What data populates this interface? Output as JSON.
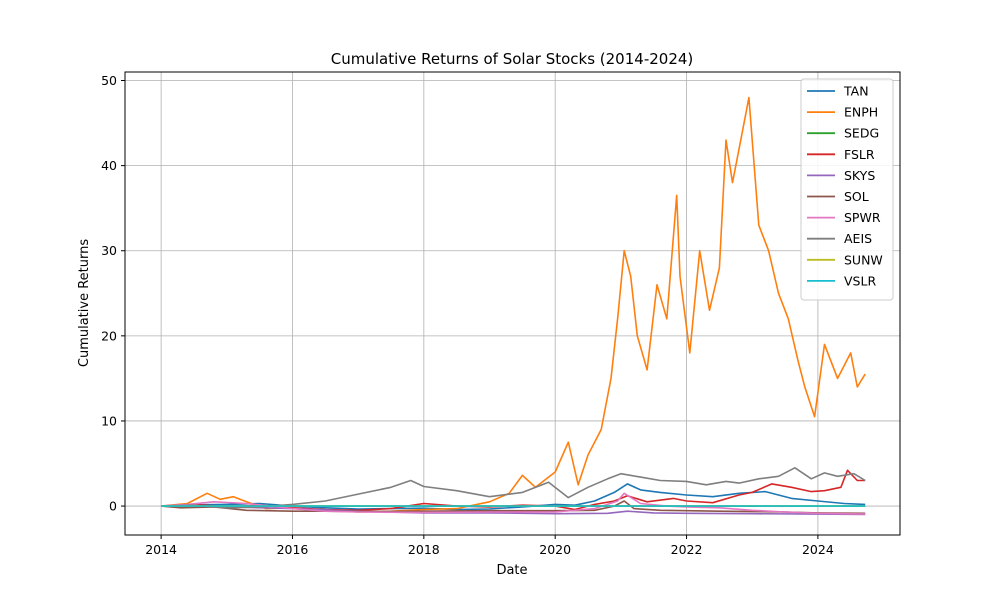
{
  "chart_data": {
    "type": "line",
    "title": "Cumulative Returns of Solar Stocks (2014-2024)",
    "xlabel": "Date",
    "ylabel": "Cumulative Returns",
    "xlim": [
      2013.45,
      2025.25
    ],
    "ylim": [
      -3.4,
      51.0
    ],
    "x_ticks": [
      2014,
      2016,
      2018,
      2020,
      2022,
      2024
    ],
    "x_tick_labels": [
      "2014",
      "2016",
      "2018",
      "2020",
      "2022",
      "2024"
    ],
    "y_ticks": [
      0,
      10,
      20,
      30,
      40,
      50
    ],
    "y_tick_labels": [
      "0",
      "10",
      "20",
      "30",
      "40",
      "50"
    ],
    "grid": true,
    "legend_position": "upper right",
    "series": [
      {
        "name": "TAN",
        "color": "#1f77b4",
        "x": [
          2014.0,
          2014.5,
          2015.0,
          2015.5,
          2016.0,
          2016.5,
          2017.0,
          2017.5,
          2018.0,
          2018.5,
          2019.0,
          2019.5,
          2020.0,
          2020.3,
          2020.6,
          2020.9,
          2021.1,
          2021.3,
          2021.6,
          2022.0,
          2022.4,
          2022.8,
          2023.2,
          2023.6,
          2024.0,
          2024.4,
          2024.72
        ],
        "y": [
          0.0,
          0.15,
          0.2,
          0.3,
          0.0,
          -0.2,
          -0.35,
          -0.3,
          -0.25,
          -0.4,
          -0.35,
          -0.1,
          0.2,
          0.1,
          0.6,
          1.6,
          2.6,
          1.9,
          1.6,
          1.3,
          1.1,
          1.5,
          1.7,
          0.9,
          0.6,
          0.3,
          0.2
        ]
      },
      {
        "name": "ENPH",
        "color": "#ff7f0e",
        "x": [
          2014.0,
          2014.4,
          2014.7,
          2014.9,
          2015.1,
          2015.3,
          2015.6,
          2016.0,
          2016.5,
          2017.0,
          2017.5,
          2018.0,
          2018.5,
          2019.0,
          2019.3,
          2019.5,
          2019.7,
          2020.0,
          2020.2,
          2020.35,
          2020.5,
          2020.7,
          2020.85,
          2020.95,
          2021.05,
          2021.15,
          2021.25,
          2021.4,
          2021.55,
          2021.7,
          2021.85,
          2021.9,
          2022.05,
          2022.2,
          2022.35,
          2022.5,
          2022.6,
          2022.7,
          2022.85,
          2022.95,
          2023.1,
          2023.25,
          2023.4,
          2023.55,
          2023.7,
          2023.8,
          2023.95,
          2024.1,
          2024.3,
          2024.5,
          2024.6,
          2024.72
        ],
        "y": [
          0.0,
          0.3,
          1.5,
          0.8,
          1.1,
          0.5,
          -0.3,
          -0.2,
          -0.5,
          -0.7,
          -0.6,
          -0.4,
          -0.3,
          0.5,
          1.5,
          3.6,
          2.2,
          4.0,
          7.5,
          2.5,
          6.0,
          9.0,
          15.0,
          22.0,
          30.0,
          27.0,
          20.0,
          16.0,
          26.0,
          22.0,
          36.5,
          27.0,
          18.0,
          30.0,
          23.0,
          28.0,
          43.0,
          38.0,
          44.0,
          48.0,
          33.0,
          30.0,
          25.0,
          22.0,
          17.0,
          14.0,
          10.5,
          19.0,
          15.0,
          18.0,
          14.0,
          15.5
        ]
      },
      {
        "name": "SEDG",
        "color": "#2ca02c",
        "x": [
          2014.0,
          2024.72
        ],
        "y": [
          0.0,
          0.0
        ]
      },
      {
        "name": "FSLR",
        "color": "#d62728",
        "x": [
          2014.0,
          2014.5,
          2015.0,
          2015.5,
          2016.0,
          2016.5,
          2017.0,
          2017.5,
          2018.0,
          2018.5,
          2019.0,
          2019.5,
          2020.0,
          2020.3,
          2020.6,
          2020.9,
          2021.1,
          2021.4,
          2021.8,
          2022.0,
          2022.4,
          2022.8,
          2023.0,
          2023.3,
          2023.6,
          2023.9,
          2024.1,
          2024.35,
          2024.45,
          2024.6,
          2024.72
        ],
        "y": [
          0.0,
          0.2,
          -0.1,
          0.1,
          -0.2,
          -0.4,
          -0.5,
          -0.3,
          0.3,
          0.0,
          -0.1,
          0.1,
          0.0,
          -0.4,
          0.2,
          0.6,
          1.2,
          0.5,
          0.9,
          0.6,
          0.4,
          1.3,
          1.6,
          2.6,
          2.2,
          1.7,
          1.8,
          2.2,
          4.2,
          3.0,
          3.0
        ]
      },
      {
        "name": "SKYS",
        "color": "#9467bd",
        "x": [
          2014.0,
          2015.0,
          2016.0,
          2017.0,
          2018.0,
          2019.0,
          2020.0,
          2020.8,
          2021.1,
          2021.5,
          2022.0,
          2023.0,
          2024.0,
          2024.72
        ],
        "y": [
          0.0,
          -0.1,
          -0.3,
          -0.6,
          -0.8,
          -0.8,
          -0.9,
          -0.85,
          -0.6,
          -0.8,
          -0.85,
          -0.9,
          -0.95,
          -0.98
        ]
      },
      {
        "name": "SOL",
        "color": "#8c564b",
        "x": [
          2014.0,
          2014.3,
          2014.8,
          2015.3,
          2016.0,
          2016.5,
          2017.0,
          2018.0,
          2019.0,
          2020.0,
          2020.6,
          2020.9,
          2021.05,
          2021.2,
          2021.6,
          2022.0,
          2022.5,
          2023.0,
          2023.5,
          2024.0,
          2024.72
        ],
        "y": [
          0.0,
          -0.2,
          -0.1,
          -0.5,
          -0.6,
          -0.6,
          -0.65,
          -0.6,
          -0.55,
          -0.55,
          -0.5,
          0.0,
          0.6,
          -0.3,
          -0.5,
          -0.55,
          -0.6,
          -0.65,
          -0.7,
          -0.8,
          -0.85
        ]
      },
      {
        "name": "SPWR",
        "color": "#e377c2",
        "x": [
          2014.0,
          2014.4,
          2014.8,
          2015.3,
          2016.0,
          2016.5,
          2017.0,
          2018.0,
          2019.0,
          2020.0,
          2020.6,
          2020.95,
          2021.05,
          2021.3,
          2021.7,
          2022.0,
          2022.5,
          2023.0,
          2023.5,
          2024.0,
          2024.72
        ],
        "y": [
          0.0,
          0.2,
          0.5,
          0.3,
          -0.3,
          -0.6,
          -0.7,
          -0.75,
          -0.7,
          -0.7,
          -0.3,
          0.6,
          1.5,
          0.3,
          0.0,
          -0.1,
          -0.2,
          -0.5,
          -0.7,
          -0.85,
          -0.95
        ]
      },
      {
        "name": "AEIS",
        "color": "#7f7f7f",
        "x": [
          2014.0,
          2014.5,
          2015.0,
          2015.5,
          2016.0,
          2016.5,
          2017.0,
          2017.5,
          2017.8,
          2018.0,
          2018.5,
          2019.0,
          2019.5,
          2019.9,
          2020.2,
          2020.5,
          2020.8,
          2021.0,
          2021.3,
          2021.6,
          2022.0,
          2022.3,
          2022.6,
          2022.8,
          2023.1,
          2023.4,
          2023.65,
          2023.9,
          2024.1,
          2024.3,
          2024.55,
          2024.72
        ],
        "y": [
          0.0,
          0.1,
          -0.2,
          -0.1,
          0.2,
          0.6,
          1.4,
          2.2,
          3.0,
          2.3,
          1.8,
          1.1,
          1.6,
          2.8,
          1.0,
          2.2,
          3.2,
          3.8,
          3.4,
          3.0,
          2.9,
          2.5,
          2.9,
          2.7,
          3.2,
          3.5,
          4.5,
          3.2,
          3.9,
          3.5,
          3.8,
          3.0
        ]
      },
      {
        "name": "SUNW",
        "color": "#bcbd22",
        "x": [
          2014.0,
          2024.72
        ],
        "y": [
          0.0,
          0.0
        ]
      },
      {
        "name": "VSLR",
        "color": "#17becf",
        "x": [
          2014.0,
          2024.72
        ],
        "y": [
          0.0,
          0.0
        ]
      }
    ]
  }
}
